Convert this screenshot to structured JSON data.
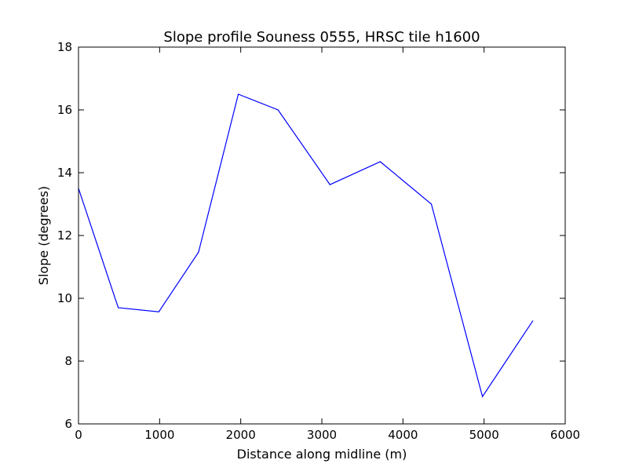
{
  "chart_data": {
    "type": "line",
    "title": "Slope profile Souness 0555, HRSC tile h1600",
    "xlabel": "Distance along midline (m)",
    "ylabel": "Slope (degrees)",
    "xlim": [
      0,
      6000
    ],
    "ylim": [
      6,
      18
    ],
    "xticks": [
      "0",
      "1000",
      "2000",
      "3000",
      "4000",
      "5000",
      "6000"
    ],
    "yticks": [
      "6",
      "8",
      "10",
      "12",
      "14",
      "16",
      "18"
    ],
    "grid": false,
    "series": [
      {
        "color": "#0000ff",
        "x": [
          0,
          490,
          990,
          1480,
          1970,
          2460,
          3100,
          3720,
          4350,
          4980,
          5600
        ],
        "y": [
          13.5,
          9.7,
          9.57,
          11.47,
          16.5,
          16.0,
          13.62,
          14.35,
          13.0,
          6.87,
          9.28
        ]
      }
    ]
  }
}
